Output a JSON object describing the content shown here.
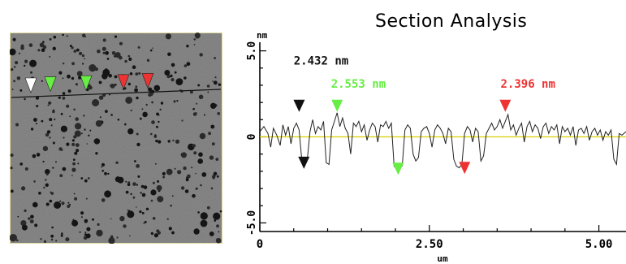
{
  "chart_data": {
    "type": "line",
    "title": "Section Analysis",
    "ylabel": "nm",
    "xlabel": "um",
    "xlim": [
      0,
      5.4
    ],
    "ylim": [
      -5.5,
      5.5
    ],
    "x_ticks": [
      0,
      2.5,
      5.0
    ],
    "x_tick_labels": [
      "0",
      "2.50",
      "5.00"
    ],
    "y_ticks": [
      5.0,
      0,
      -5.0
    ],
    "y_tick_labels": [
      "5.0",
      "0",
      "-5.0"
    ],
    "grid": false,
    "baseline_color": "#d8d000",
    "series": [
      {
        "x": [
          0.0,
          0.06,
          0.12,
          0.16,
          0.2,
          0.25,
          0.3,
          0.34,
          0.38,
          0.42,
          0.46,
          0.5,
          0.54,
          0.58,
          0.62,
          0.66,
          0.7,
          0.74,
          0.78,
          0.82,
          0.86,
          0.9,
          0.94,
          0.98,
          1.02,
          1.06,
          1.1,
          1.14,
          1.18,
          1.22,
          1.26,
          1.3,
          1.34,
          1.38,
          1.42,
          1.46,
          1.5,
          1.54,
          1.58,
          1.62,
          1.66,
          1.7,
          1.74,
          1.78,
          1.82,
          1.86,
          1.9,
          1.94,
          1.98,
          2.02,
          2.06,
          2.1,
          2.14,
          2.18,
          2.22,
          2.26,
          2.3,
          2.34,
          2.38,
          2.42,
          2.46,
          2.5,
          2.54,
          2.58,
          2.62,
          2.66,
          2.7,
          2.74,
          2.78,
          2.82,
          2.86,
          2.9,
          2.94,
          2.98,
          3.02,
          3.06,
          3.1,
          3.14,
          3.18,
          3.22,
          3.26,
          3.3,
          3.34,
          3.38,
          3.42,
          3.46,
          3.5,
          3.54,
          3.58,
          3.62,
          3.66,
          3.7,
          3.74,
          3.78,
          3.82,
          3.86,
          3.9,
          3.94,
          3.98,
          4.02,
          4.06,
          4.1,
          4.14,
          4.18,
          4.22,
          4.26,
          4.3,
          4.34,
          4.38,
          4.42,
          4.46,
          4.5,
          4.54,
          4.58,
          4.62,
          4.66,
          4.7,
          4.74,
          4.78,
          4.82,
          4.86,
          4.9,
          4.94,
          4.98,
          5.02,
          5.06,
          5.1,
          5.14,
          5.18,
          5.22,
          5.26,
          5.3,
          5.34,
          5.4
        ],
        "y": [
          0.3,
          0.6,
          0.2,
          -0.6,
          0.5,
          0.1,
          -0.5,
          0.7,
          0.1,
          0.6,
          -0.4,
          0.5,
          0.8,
          0.4,
          -1.4,
          -1.5,
          -1.3,
          0.3,
          1.0,
          0.2,
          0.6,
          0.4,
          0.9,
          -1.5,
          -1.6,
          0.4,
          0.9,
          1.4,
          0.6,
          1.1,
          0.5,
          0.2,
          -1.0,
          0.8,
          0.6,
          0.9,
          0.3,
          0.7,
          -0.2,
          0.4,
          0.8,
          0.6,
          -0.3,
          0.7,
          0.6,
          0.9,
          0.5,
          0.8,
          -1.7,
          -1.9,
          -1.8,
          -1.7,
          0.4,
          0.7,
          0.5,
          -1.0,
          -1.4,
          -1.2,
          0.3,
          0.5,
          0.6,
          0.2,
          -0.6,
          0.4,
          0.7,
          0.5,
          0.2,
          -0.4,
          0.5,
          0.3,
          -1.3,
          -1.7,
          -1.8,
          -1.6,
          0.2,
          0.6,
          0.4,
          -0.3,
          0.5,
          0.3,
          -1.4,
          -1.1,
          0.2,
          0.5,
          0.8,
          0.4,
          0.6,
          1.0,
          0.5,
          0.9,
          1.3,
          0.4,
          0.7,
          0.1,
          0.5,
          0.8,
          -0.3,
          0.6,
          0.9,
          0.3,
          0.7,
          0.5,
          -0.1,
          0.6,
          0.8,
          0.2,
          0.6,
          0.4,
          0.7,
          -0.4,
          0.6,
          0.3,
          0.5,
          0.1,
          0.6,
          -0.5,
          0.4,
          0.5,
          0.2,
          0.6,
          -0.2,
          0.3,
          0.5,
          0.1,
          0.4,
          -0.2,
          0.3,
          0.1,
          0.4,
          -1.3,
          -1.6,
          0.2,
          0.1,
          0.3
        ]
      }
    ],
    "markers": [
      {
        "x": 0.58,
        "y": 1.45,
        "direction": "down",
        "color": "#111111"
      },
      {
        "x": 0.65,
        "y": -1.15,
        "direction": "up",
        "color": "#111111"
      },
      {
        "x": 1.14,
        "y": 1.45,
        "direction": "down",
        "color": "#66ee44"
      },
      {
        "x": 2.04,
        "y": -1.5,
        "direction": "up",
        "color": "#66ee44"
      },
      {
        "x": 3.02,
        "y": -1.45,
        "direction": "up",
        "color": "#ee3333"
      },
      {
        "x": 3.62,
        "y": 1.45,
        "direction": "down",
        "color": "#ee3333"
      }
    ],
    "annotations": [
      {
        "text": "2.432 nm",
        "x": 0.5,
        "y": 4.2,
        "color": "#111111"
      },
      {
        "text": "2.553 nm",
        "x": 1.05,
        "y": 2.85,
        "color": "#66ee44"
      },
      {
        "text": "2.396 nm",
        "x": 3.55,
        "y": 2.85,
        "color": "#ee3333"
      }
    ]
  },
  "image_markers": [
    {
      "color": "#ffffff"
    },
    {
      "color": "#66ee44"
    },
    {
      "color": "#66ee44"
    },
    {
      "color": "#ee3333"
    },
    {
      "color": "#ee3333"
    }
  ]
}
